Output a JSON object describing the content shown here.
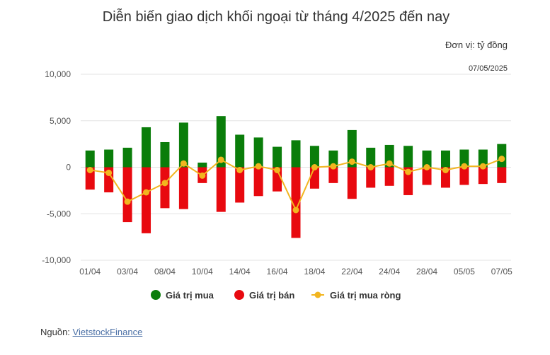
{
  "chart_data": {
    "type": "bar",
    "title": "Diễn biến giao dịch khối ngoại từ tháng 4/2025 đến nay",
    "unit_label": "Đơn vị: tỷ đồng",
    "date_label": "07/05/2025",
    "ylim": [
      -10000,
      10000
    ],
    "yticks": [
      {
        "value": 10000,
        "label": "10,000"
      },
      {
        "value": 5000,
        "label": "5,000"
      },
      {
        "value": 0,
        "label": "0"
      },
      {
        "value": -5000,
        "label": "-5,000"
      },
      {
        "value": -10000,
        "label": "-10,000"
      }
    ],
    "categories": [
      "01/04",
      "02/04",
      "03/04",
      "04/04",
      "08/04",
      "09/04",
      "10/04",
      "11/04",
      "14/04",
      "15/04",
      "16/04",
      "17/04",
      "18/04",
      "21/04",
      "22/04",
      "23/04",
      "24/04",
      "25/04",
      "28/04",
      "29/04",
      "05/05",
      "06/05",
      "07/05"
    ],
    "x_tick_labels": [
      "01/04",
      "",
      "03/04",
      "",
      "08/04",
      "",
      "10/04",
      "",
      "14/04",
      "",
      "16/04",
      "",
      "18/04",
      "",
      "22/04",
      "",
      "24/04",
      "",
      "28/04",
      "",
      "05/05",
      "",
      "07/05"
    ],
    "series": [
      {
        "name": "Giá trị mua",
        "kind": "bar",
        "color": "#0a7d0a",
        "values": [
          1800,
          1900,
          2100,
          4300,
          2700,
          4800,
          500,
          5500,
          3500,
          3200,
          2200,
          2900,
          2300,
          1800,
          4000,
          2100,
          2400,
          2300,
          1800,
          1800,
          1900,
          1900,
          2500
        ]
      },
      {
        "name": "Giá trị bán",
        "kind": "bar",
        "color": "#e8090f",
        "values": [
          -2400,
          -2700,
          -5900,
          -7100,
          -4400,
          -4500,
          -1700,
          -4800,
          -3800,
          -3100,
          -2600,
          -7600,
          -2300,
          -1700,
          -3400,
          -2200,
          -2000,
          -3000,
          -1900,
          -2200,
          -1900,
          -1800,
          -1700
        ]
      },
      {
        "name": "Giá trị mua ròng",
        "kind": "line",
        "color": "#f2b51f",
        "values": [
          -300,
          -600,
          -3700,
          -2700,
          -1700,
          400,
          -900,
          800,
          -300,
          100,
          -300,
          -4600,
          0,
          100,
          600,
          0,
          400,
          -500,
          0,
          -300,
          100,
          100,
          900
        ]
      }
    ]
  },
  "source": {
    "label": "Nguồn: ",
    "link_text": "VietstockFinance"
  }
}
